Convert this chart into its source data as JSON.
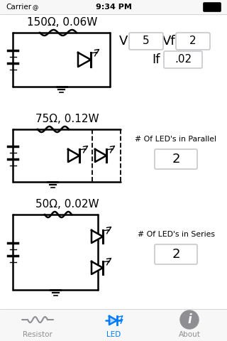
{
  "bg_color": "#ffffff",
  "status_bar_bg": "#f7f7f7",
  "tab_bar_bg": "#f7f7f7",
  "tab_items": [
    "Resistor",
    "LED",
    "About"
  ],
  "active_color": "#007aff",
  "inactive_color": "#8e8e93",
  "carrier": "Carrier",
  "time": "9:34 PM",
  "sec1_label": "150Ω, 0.06W",
  "sec2_label": "75Ω, 0.12W",
  "sec3_label": "50Ω, 0.02W",
  "v_label": "V",
  "v_value": "5",
  "vf_label": "Vf",
  "vf_value": "2",
  "if_label": "If",
  "if_value": ".02",
  "parallel_label": "# Of LED's in Parallel",
  "parallel_value": "2",
  "series_label": "# Of LED's in Series",
  "series_value": "2",
  "separator_color": "#c8c8cd",
  "box_border_color": "#c8c8cd"
}
